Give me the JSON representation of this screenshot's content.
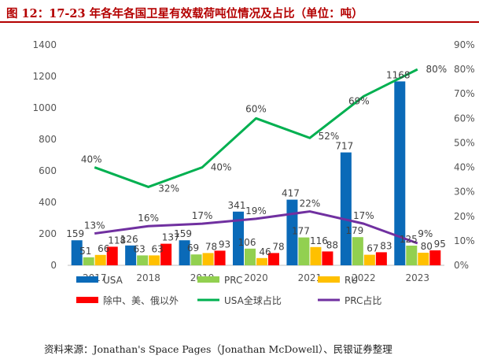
{
  "title": "图 12：17-23 年各年各国卫星有效载荷吨位情况及占比（单位：吨）",
  "source": "资料来源：Jonathan's Space Pages（Jonathan McDowell）、民银证券整理",
  "colors": {
    "USA": "#0a6ab8",
    "PRC": "#92d050",
    "RU": "#ffc000",
    "Others": "#ff0000",
    "USA_share": "#00b050",
    "PRC_share": "#7030a0"
  },
  "chart_data": {
    "type": "bar",
    "categories": [
      "2017",
      "2018",
      "2019",
      "2020",
      "2021",
      "2022",
      "2023"
    ],
    "series": [
      {
        "name": "USA",
        "kind": "bar",
        "axis": "left",
        "values": [
          159,
          126,
          159,
          341,
          417,
          717,
          1168
        ]
      },
      {
        "name": "PRC",
        "kind": "bar",
        "axis": "left",
        "values": [
          51,
          63,
          69,
          106,
          177,
          179,
          125
        ]
      },
      {
        "name": "RU",
        "kind": "bar",
        "axis": "left",
        "values": [
          66,
          63,
          78,
          46,
          116,
          67,
          80
        ]
      },
      {
        "name": "除中、美、俄以外",
        "kind": "bar",
        "axis": "left",
        "values": [
          118,
          137,
          93,
          78,
          88,
          83,
          95
        ]
      },
      {
        "name": "USA全球占比",
        "kind": "line",
        "axis": "right",
        "values": [
          0.4,
          0.32,
          0.4,
          0.6,
          0.52,
          0.69,
          0.8
        ]
      },
      {
        "name": "PRC占比",
        "kind": "line",
        "axis": "right",
        "values": [
          0.13,
          0.16,
          0.17,
          0.19,
          0.22,
          0.17,
          0.09
        ]
      }
    ],
    "left_ticks": [
      "0",
      "200",
      "400",
      "600",
      "800",
      "1000",
      "1200",
      "1400"
    ],
    "right_ticks": [
      "0%",
      "10%",
      "20%",
      "30%",
      "40%",
      "50%",
      "60%",
      "70%",
      "80%",
      "90%"
    ],
    "data_labels": {
      "USA": [
        "159",
        "126",
        "159",
        "341",
        "417",
        "717",
        "1168"
      ],
      "PRC": [
        "51",
        "63",
        "69",
        "106",
        "177",
        "179",
        "125"
      ],
      "RU": [
        "66",
        "63",
        "78",
        "46",
        "116",
        "67",
        "80"
      ],
      "Others": [
        "118",
        "137",
        "93",
        "78",
        "88",
        "83",
        "95"
      ],
      "USA_share": [
        "40%",
        "32%",
        "40%",
        "60%",
        "52%",
        "69%",
        "80%"
      ],
      "PRC_share": [
        "13%",
        "16%",
        "17%",
        "19%",
        "22%",
        "17%",
        "9%"
      ]
    },
    "ylim_left": [
      0,
      1400
    ],
    "ylim_right": [
      0,
      0.9
    ],
    "grid": false,
    "legend_position": "bottom"
  }
}
